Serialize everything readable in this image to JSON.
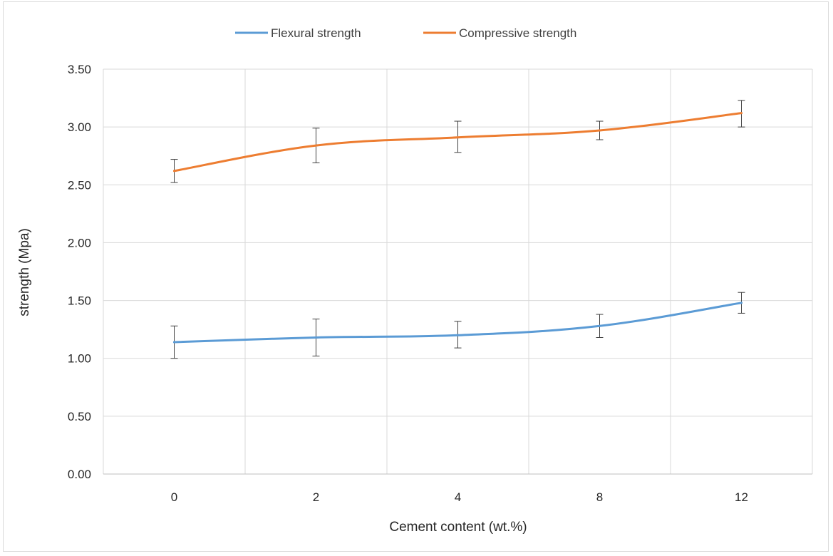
{
  "chart_data": {
    "type": "line",
    "categories": [
      "0",
      "2",
      "4",
      "8",
      "12"
    ],
    "series": [
      {
        "name": "Flexural strength",
        "color": "#5b9bd5",
        "values": [
          1.14,
          1.18,
          1.2,
          1.28,
          1.48
        ],
        "error_low": [
          1.0,
          1.02,
          1.09,
          1.18,
          1.39
        ],
        "error_high": [
          1.28,
          1.34,
          1.32,
          1.38,
          1.57
        ]
      },
      {
        "name": "Compressive strength",
        "color": "#ed7d31",
        "values": [
          2.62,
          2.84,
          2.91,
          2.97,
          3.12
        ],
        "error_low": [
          2.52,
          2.69,
          2.78,
          2.89,
          3.0
        ],
        "error_high": [
          2.72,
          2.99,
          3.05,
          3.05,
          3.23
        ]
      }
    ],
    "title": "",
    "xlabel": "Cement content (wt.%)",
    "ylabel": "strength (Mpa)",
    "ylim": [
      0,
      3.5
    ],
    "yticks": [
      "0.00",
      "0.50",
      "1.00",
      "1.50",
      "2.00",
      "2.50",
      "3.00",
      "3.50"
    ],
    "grid": true,
    "legend_position": "top-center",
    "error_bars": true
  }
}
